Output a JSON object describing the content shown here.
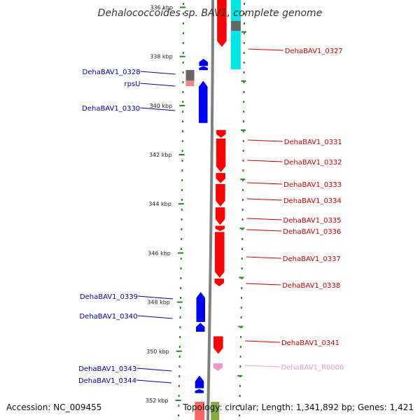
{
  "title": "Dehalococcoides sp. BAV1, complete genome",
  "footer": {
    "accession": "Accession: NC_009455",
    "topology": "Topology: circular; Length: 1,341,892 bp; Genes: 1,421"
  },
  "colors": {
    "forward": "#ff0000",
    "reverse": "#0000ff",
    "rna": "#ee99cc",
    "backbone": "#808080",
    "dots": "#228822",
    "extra_cyan": "#00e5e5",
    "extra_dark": "#666666",
    "extra_pink": "#ee8888",
    "extra_green": "#88aa44"
  },
  "scale": {
    "start_kbp": 335.7,
    "end_kbp": 352.8,
    "tick_labels": [
      {
        "kbp": 336,
        "label": "336 kbp"
      },
      {
        "kbp": 338,
        "label": "338 kbp"
      },
      {
        "kbp": 340,
        "label": "340 kbp"
      },
      {
        "kbp": 342,
        "label": "342 kbp"
      },
      {
        "kbp": 344,
        "label": "344 kbp"
      },
      {
        "kbp": 346,
        "label": "346 kbp"
      },
      {
        "kbp": 348,
        "label": "348 kbp"
      },
      {
        "kbp": 350,
        "label": "350 kbp"
      },
      {
        "kbp": 352,
        "label": "352 kbp"
      }
    ]
  },
  "genes": [
    {
      "name": "DehaBAV1_0327",
      "strand": "+",
      "start_kbp": 335.7,
      "end_kbp": 337.6
    },
    {
      "name": "DehaBAV1_0328",
      "strand": "-",
      "start_kbp": 338.1,
      "end_kbp": 338.38
    },
    {
      "name": "rpsU",
      "strand": "-",
      "start_kbp": 338.4,
      "end_kbp": 338.55
    },
    {
      "name": "DehaBAV1_0330",
      "strand": "-",
      "start_kbp": 339.0,
      "end_kbp": 340.7
    },
    {
      "name": "DehaBAV1_0331",
      "strand": "+",
      "start_kbp": 341.0,
      "end_kbp": 341.3
    },
    {
      "name": "DehaBAV1_0332",
      "strand": "+",
      "start_kbp": 341.35,
      "end_kbp": 342.7
    },
    {
      "name": "DehaBAV1_0333",
      "strand": "+",
      "start_kbp": 342.75,
      "end_kbp": 343.15
    },
    {
      "name": "DehaBAV1_0334",
      "strand": "+",
      "start_kbp": 343.2,
      "end_kbp": 344.1
    },
    {
      "name": "DehaBAV1_0335",
      "strand": "+",
      "start_kbp": 344.15,
      "end_kbp": 344.85
    },
    {
      "name": "DehaBAV1_0336",
      "strand": "+",
      "start_kbp": 344.9,
      "end_kbp": 345.1
    },
    {
      "name": "DehaBAV1_0337",
      "strand": "+",
      "start_kbp": 345.15,
      "end_kbp": 347.0
    },
    {
      "name": "DehaBAV1_0338",
      "strand": "+",
      "start_kbp": 347.05,
      "end_kbp": 347.35
    },
    {
      "name": "DehaBAV1_0339",
      "strand": "-",
      "start_kbp": 347.6,
      "end_kbp": 348.8
    },
    {
      "name": "DehaBAV1_0340",
      "strand": "-",
      "start_kbp": 348.85,
      "end_kbp": 349.2
    },
    {
      "name": "DehaBAV1_0341",
      "strand": "+",
      "start_kbp": 349.4,
      "end_kbp": 350.1
    },
    {
      "name": "DehaBAV1_R0006",
      "strand": "+",
      "start_kbp": 350.5,
      "end_kbp": 350.8,
      "rna": true
    },
    {
      "name": "DehaBAV1_0343",
      "strand": "-",
      "start_kbp": 351.0,
      "end_kbp": 351.5
    },
    {
      "name": "DehaBAV1_0344",
      "strand": "-",
      "start_kbp": 351.55,
      "end_kbp": 351.7
    }
  ]
}
